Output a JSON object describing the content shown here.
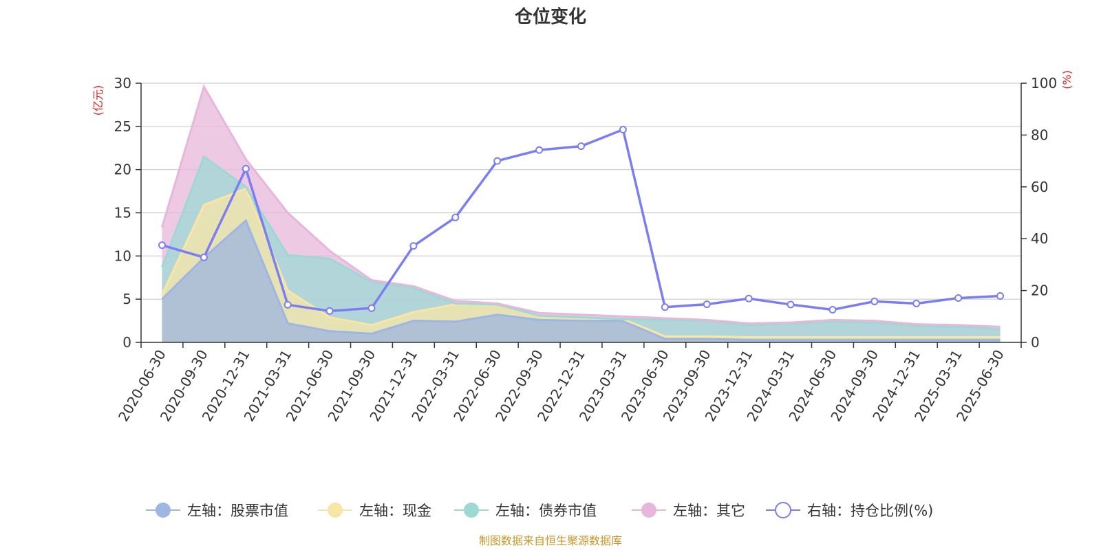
{
  "chart_data": {
    "type": "area",
    "title": "仓位变化",
    "left_axis": {
      "unit": "(亿元)",
      "ylim": [
        0,
        30
      ],
      "ticks": [
        "0",
        "5",
        "10",
        "15",
        "20",
        "25",
        "30"
      ]
    },
    "right_axis": {
      "unit": "(%)",
      "ylim": [
        0,
        100
      ],
      "ticks": [
        "0",
        "20",
        "40",
        "60",
        "80",
        "100"
      ]
    },
    "categories": [
      "2020-06-30",
      "2020-09-30",
      "2020-12-31",
      "2021-03-31",
      "2021-06-30",
      "2021-09-30",
      "2021-12-31",
      "2022-03-31",
      "2022-06-30",
      "2022-09-30",
      "2022-12-31",
      "2023-03-31",
      "2023-06-30",
      "2023-09-30",
      "2023-12-31",
      "2024-03-31",
      "2024-06-30",
      "2024-09-30",
      "2024-12-31",
      "2025-03-31",
      "2025-06-30"
    ],
    "series": [
      {
        "name": "左轴：股票市值",
        "axis": "left",
        "kind": "stacked-area",
        "color": "#9db6e2",
        "values": [
          5.0,
          9.8,
          14.1,
          2.2,
          1.3,
          1.0,
          2.5,
          2.4,
          3.2,
          2.6,
          2.5,
          2.5,
          0.4,
          0.4,
          0.3,
          0.3,
          0.3,
          0.3,
          0.3,
          0.3,
          0.3
        ]
      },
      {
        "name": "左轴：现金",
        "axis": "left",
        "kind": "stacked-area",
        "color": "#f8e6a6",
        "values": [
          0.5,
          6.1,
          3.7,
          3.8,
          1.6,
          1.0,
          1.0,
          2.0,
          1.2,
          0.5,
          0.4,
          0.2,
          0.3,
          0.3,
          0.3,
          0.3,
          0.3,
          0.3,
          0.3,
          0.3,
          0.3
        ]
      },
      {
        "name": "左轴：债券市值",
        "axis": "left",
        "kind": "stacked-area",
        "color": "#9dd8d5",
        "values": [
          3.2,
          5.6,
          0.2,
          4.1,
          6.8,
          5.0,
          2.8,
          0.1,
          0.0,
          0.0,
          0.0,
          0.0,
          1.9,
          1.8,
          1.4,
          1.6,
          1.8,
          1.7,
          1.3,
          1.2,
          0.9
        ]
      },
      {
        "name": "左轴：其它",
        "axis": "left",
        "kind": "stacked-area",
        "color": "#e7b7db",
        "values": [
          4.6,
          8.1,
          3.2,
          4.9,
          0.9,
          0.2,
          0.2,
          0.3,
          0.1,
          0.3,
          0.3,
          0.3,
          0.2,
          0.1,
          0.2,
          0.1,
          0.2,
          0.2,
          0.2,
          0.2,
          0.3
        ]
      },
      {
        "name": "右轴：持仓比例(%)",
        "axis": "right",
        "kind": "line",
        "color": "#7b7ef0",
        "values": [
          37.5,
          32.8,
          67.0,
          14.5,
          12.1,
          13.2,
          37.2,
          48.2,
          70.0,
          74.2,
          75.7,
          82.1,
          13.6,
          14.7,
          16.9,
          14.6,
          12.6,
          15.8,
          15.0,
          17.1,
          17.9
        ]
      }
    ],
    "grid": true,
    "legend_position": "bottom"
  },
  "source_note": "制图数据来自恒生聚源数据库"
}
